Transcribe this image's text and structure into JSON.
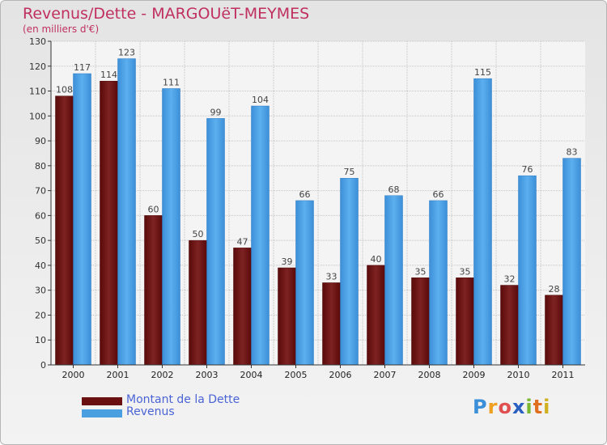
{
  "header": {
    "title": "Revenus/Dette - MARGOUëT-MEYMES",
    "subtitle": "(en milliers d'€)"
  },
  "colors": {
    "dette": "#7a1a1a",
    "revenus": "#4a9fe0",
    "title": "#c0305f"
  },
  "legend": {
    "dette_label": "Montant de la Dette",
    "revenus_label": "Revenus"
  },
  "logo": {
    "letters": [
      "P",
      "r",
      "o",
      "x",
      "i",
      "t",
      "i"
    ]
  },
  "chart_data": {
    "type": "bar",
    "title": "Revenus/Dette - MARGOUëT-MEYMES",
    "ylabel": "(en milliers d'€)",
    "xlabel": "",
    "categories": [
      "2000",
      "2001",
      "2002",
      "2003",
      "2004",
      "2005",
      "2006",
      "2007",
      "2008",
      "2009",
      "2010",
      "2011"
    ],
    "series": [
      {
        "name": "Montant de la Dette",
        "values": [
          108,
          114,
          60,
          50,
          47,
          39,
          33,
          40,
          35,
          35,
          32,
          28
        ]
      },
      {
        "name": "Revenus",
        "values": [
          117,
          123,
          111,
          99,
          104,
          66,
          75,
          68,
          66,
          115,
          76,
          83
        ]
      }
    ],
    "ylim": [
      0,
      130
    ],
    "yticks": [
      0,
      10,
      20,
      30,
      40,
      50,
      60,
      70,
      80,
      90,
      100,
      110,
      120,
      130
    ],
    "grid": true,
    "legend_position": "bottom-left"
  }
}
